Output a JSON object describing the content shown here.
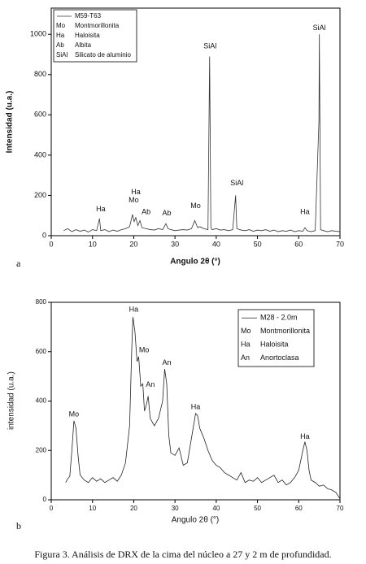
{
  "chart_data": [
    {
      "type": "line",
      "panel_label": "a",
      "x_label": "Angulo 2θ (°)",
      "y_label": "Intensidad (u.a.)",
      "x": [
        3,
        4,
        5,
        6,
        7,
        8,
        9,
        10,
        11,
        11.7,
        12,
        13,
        14,
        15,
        16,
        17,
        18,
        19,
        19.7,
        20.1,
        20.5,
        21,
        21.5,
        22,
        23,
        24,
        25,
        26,
        27,
        27.8,
        28.3,
        29,
        30,
        31,
        32,
        33,
        34,
        34.8,
        35.5,
        36,
        37,
        38,
        38.4,
        38.7,
        39,
        40,
        41,
        42,
        43,
        44,
        44.7,
        45,
        46,
        47,
        48,
        49,
        50,
        51,
        52,
        53,
        54,
        55,
        56,
        57,
        58,
        59,
        60,
        61,
        61.5,
        62,
        63,
        64,
        64.9,
        65,
        65.3,
        66,
        67,
        68,
        69,
        70
      ],
      "series": [
        {
          "name": "M59-T63",
          "color": "#333333",
          "values": [
            25,
            35,
            20,
            30,
            22,
            28,
            18,
            30,
            25,
            85,
            25,
            30,
            20,
            28,
            22,
            30,
            35,
            45,
            105,
            70,
            90,
            50,
            75,
            40,
            35,
            30,
            28,
            35,
            30,
            60,
            35,
            30,
            25,
            28,
            30,
            28,
            35,
            75,
            40,
            45,
            35,
            30,
            890,
            40,
            30,
            35,
            28,
            30,
            25,
            30,
            200,
            35,
            28,
            25,
            30,
            22,
            28,
            25,
            30,
            22,
            28,
            20,
            25,
            22,
            28,
            20,
            25,
            22,
            40,
            25,
            20,
            25,
            570,
            1000,
            30,
            25,
            20,
            25,
            22,
            20
          ]
        }
      ],
      "xlim": [
        0,
        70
      ],
      "ylim": [
        0,
        1130
      ],
      "xticks": [
        0,
        10,
        20,
        30,
        40,
        50,
        60,
        70
      ],
      "yticks": [
        0,
        200,
        400,
        600,
        800,
        1000
      ],
      "legend": {
        "entries": [
          {
            "code": "Mo",
            "name": "Montmorillonita"
          },
          {
            "code": "Ha",
            "name": "Haloisita"
          },
          {
            "code": "Ab",
            "name": "Albita"
          },
          {
            "code": "SiAl",
            "name": "Silicato de aluminio"
          }
        ]
      },
      "annotations": [
        {
          "text": "Ha",
          "x": 12,
          "y": 130
        },
        {
          "text": "Mo",
          "x": 20,
          "y": 175
        },
        {
          "text": "Ha",
          "x": 20.5,
          "y": 215
        },
        {
          "text": "Ab",
          "x": 23,
          "y": 117
        },
        {
          "text": "Ab",
          "x": 28,
          "y": 110
        },
        {
          "text": "Mo",
          "x": 35,
          "y": 146
        },
        {
          "text": "SiAl",
          "x": 38.5,
          "y": 940
        },
        {
          "text": "SiAl",
          "x": 45,
          "y": 260
        },
        {
          "text": "Ha",
          "x": 61.5,
          "y": 117
        },
        {
          "text": "SiAl",
          "x": 65,
          "y": 1030
        }
      ]
    },
    {
      "type": "line",
      "panel_label": "b",
      "x_label": "Angulo 2θ (°)",
      "y_label": "intensidad (u.a.)",
      "x": [
        3.5,
        4,
        4.5,
        5,
        5.5,
        6,
        6.5,
        7,
        8,
        9,
        10,
        11,
        12,
        13,
        14,
        15,
        16,
        17,
        18,
        19,
        19.5,
        19.8,
        20.3,
        20.8,
        21.2,
        21.7,
        22.2,
        22.6,
        23,
        23.5,
        24,
        25,
        26,
        27,
        27.5,
        28,
        28.5,
        29,
        30,
        31,
        32,
        33,
        34,
        35,
        35.5,
        36,
        37,
        38,
        39,
        40,
        41,
        42,
        43,
        44,
        45,
        46,
        47,
        48,
        49,
        50,
        51,
        52,
        53,
        54,
        55,
        56,
        57,
        58,
        59,
        60,
        61,
        61.5,
        62,
        62.5,
        63,
        64,
        65,
        66,
        67,
        68,
        69,
        70
      ],
      "series": [
        {
          "name": "M28 - 2.0m",
          "color": "#222222",
          "values": [
            70,
            85,
            95,
            200,
            320,
            290,
            180,
            100,
            80,
            70,
            90,
            75,
            85,
            70,
            80,
            90,
            75,
            100,
            150,
            300,
            600,
            740,
            680,
            560,
            580,
            460,
            470,
            360,
            380,
            420,
            330,
            300,
            330,
            400,
            530,
            470,
            260,
            190,
            180,
            210,
            140,
            150,
            250,
            350,
            340,
            290,
            250,
            200,
            160,
            140,
            130,
            110,
            100,
            90,
            80,
            110,
            70,
            80,
            75,
            90,
            70,
            80,
            90,
            100,
            70,
            80,
            60,
            70,
            90,
            120,
            200,
            235,
            200,
            120,
            80,
            70,
            55,
            60,
            45,
            40,
            30,
            5
          ]
        }
      ],
      "xlim": [
        0,
        70
      ],
      "ylim": [
        0,
        800
      ],
      "xticks": [
        0,
        10,
        20,
        30,
        40,
        50,
        60,
        70
      ],
      "yticks": [
        0,
        200,
        400,
        600,
        800
      ],
      "legend": {
        "entries": [
          {
            "code": "Mo",
            "name": "Montmorillonita"
          },
          {
            "code": "Ha",
            "name": "Haloisita"
          },
          {
            "code": "An",
            "name": "Anortoclasa"
          }
        ]
      },
      "annotations": [
        {
          "text": "Mo",
          "x": 5.5,
          "y": 345
        },
        {
          "text": "Ha",
          "x": 20,
          "y": 770
        },
        {
          "text": "Mo",
          "x": 22.5,
          "y": 605
        },
        {
          "text": "An",
          "x": 24,
          "y": 465
        },
        {
          "text": "An",
          "x": 28,
          "y": 555
        },
        {
          "text": "Ha",
          "x": 35,
          "y": 375
        },
        {
          "text": "Ha",
          "x": 61.5,
          "y": 255
        }
      ]
    }
  ],
  "caption": "Figura 3. Análisis de DRX de la cima del núcleo a 27 y 2 m de profundidad."
}
